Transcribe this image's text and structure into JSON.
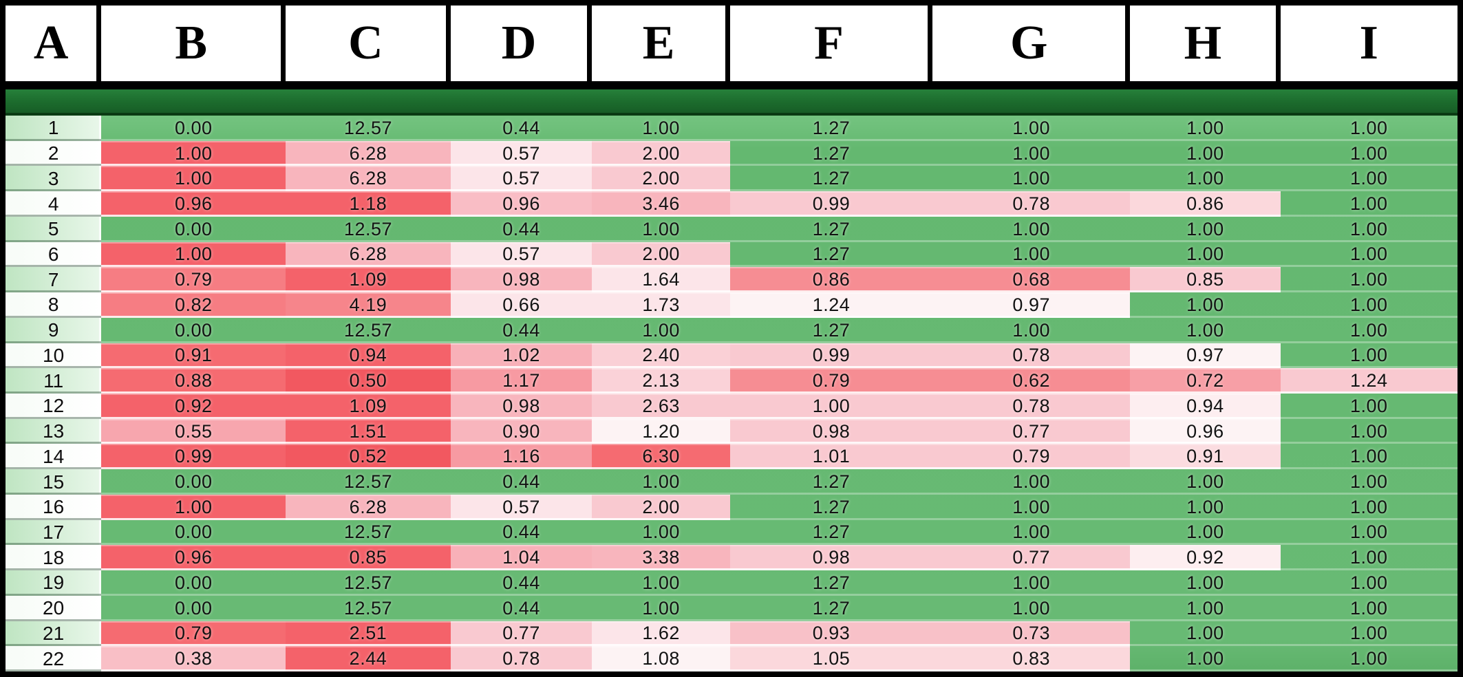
{
  "header": {
    "columns": [
      "A",
      "B",
      "C",
      "D",
      "E",
      "F",
      "G",
      "H",
      "I"
    ]
  },
  "colors": {
    "grid_background_green": "#66ba72",
    "divider_band_dark_green": "#1c6b2d",
    "header_background": "#ffffff",
    "frame_border": "#000000",
    "row_number_odd_green": "#c9e9cc",
    "row_number_even_white": "#ffffff",
    "heat_scale_red_max": "#f25860",
    "heat_scale_white_mid": "#fdf3f4"
  },
  "table": {
    "rows": [
      {
        "num": "1",
        "cells": [
          {
            "v": "0.00",
            "bg": ""
          },
          {
            "v": "12.57",
            "bg": ""
          },
          {
            "v": "0.44",
            "bg": ""
          },
          {
            "v": "1.00",
            "bg": ""
          },
          {
            "v": "1.27",
            "bg": ""
          },
          {
            "v": "1.00",
            "bg": ""
          },
          {
            "v": "1.00",
            "bg": ""
          },
          {
            "v": "1.00",
            "bg": ""
          }
        ]
      },
      {
        "num": "2",
        "cells": [
          {
            "v": "1.00",
            "bg": "#f4626a"
          },
          {
            "v": "6.28",
            "bg": "#f8b5bd"
          },
          {
            "v": "0.57",
            "bg": "#fce5e9"
          },
          {
            "v": "2.00",
            "bg": "#f9c9d0"
          },
          {
            "v": "1.27",
            "bg": ""
          },
          {
            "v": "1.00",
            "bg": ""
          },
          {
            "v": "1.00",
            "bg": ""
          },
          {
            "v": "1.00",
            "bg": ""
          }
        ]
      },
      {
        "num": "3",
        "cells": [
          {
            "v": "1.00",
            "bg": "#f4626a"
          },
          {
            "v": "6.28",
            "bg": "#f8b5bd"
          },
          {
            "v": "0.57",
            "bg": "#fce5e9"
          },
          {
            "v": "2.00",
            "bg": "#f9c9d0"
          },
          {
            "v": "1.27",
            "bg": ""
          },
          {
            "v": "1.00",
            "bg": ""
          },
          {
            "v": "1.00",
            "bg": ""
          },
          {
            "v": "1.00",
            "bg": ""
          }
        ]
      },
      {
        "num": "4",
        "cells": [
          {
            "v": "0.96",
            "bg": "#f4626a"
          },
          {
            "v": "1.18",
            "bg": "#f4626a"
          },
          {
            "v": "0.96",
            "bg": "#f9bdc5"
          },
          {
            "v": "3.46",
            "bg": "#f8b5bd"
          },
          {
            "v": "0.99",
            "bg": "#f9c9d0"
          },
          {
            "v": "0.78",
            "bg": "#f9c9d0"
          },
          {
            "v": "0.86",
            "bg": "#fbd8dc"
          },
          {
            "v": "1.00",
            "bg": ""
          }
        ]
      },
      {
        "num": "5",
        "cells": [
          {
            "v": "0.00",
            "bg": ""
          },
          {
            "v": "12.57",
            "bg": ""
          },
          {
            "v": "0.44",
            "bg": ""
          },
          {
            "v": "1.00",
            "bg": ""
          },
          {
            "v": "1.27",
            "bg": ""
          },
          {
            "v": "1.00",
            "bg": ""
          },
          {
            "v": "1.00",
            "bg": ""
          },
          {
            "v": "1.00",
            "bg": ""
          }
        ]
      },
      {
        "num": "6",
        "cells": [
          {
            "v": "1.00",
            "bg": "#f4626a"
          },
          {
            "v": "6.28",
            "bg": "#f8b5bd"
          },
          {
            "v": "0.57",
            "bg": "#fce5e9"
          },
          {
            "v": "2.00",
            "bg": "#f9c9d0"
          },
          {
            "v": "1.27",
            "bg": ""
          },
          {
            "v": "1.00",
            "bg": ""
          },
          {
            "v": "1.00",
            "bg": ""
          },
          {
            "v": "1.00",
            "bg": ""
          }
        ]
      },
      {
        "num": "7",
        "cells": [
          {
            "v": "0.79",
            "bg": "#f67d83"
          },
          {
            "v": "1.09",
            "bg": "#f4626a"
          },
          {
            "v": "0.98",
            "bg": "#f8b5bd"
          },
          {
            "v": "1.64",
            "bg": "#fce5e9"
          },
          {
            "v": "0.86",
            "bg": "#f68d93"
          },
          {
            "v": "0.68",
            "bg": "#f68d93"
          },
          {
            "v": "0.85",
            "bg": "#f9c9d0"
          },
          {
            "v": "1.00",
            "bg": ""
          }
        ]
      },
      {
        "num": "8",
        "cells": [
          {
            "v": "0.82",
            "bg": "#f67d83"
          },
          {
            "v": "4.19",
            "bg": "#f6858b"
          },
          {
            "v": "0.66",
            "bg": "#fce5e9"
          },
          {
            "v": "1.73",
            "bg": "#fce5e9"
          },
          {
            "v": "1.24",
            "bg": "#fdf3f4"
          },
          {
            "v": "0.97",
            "bg": "#fdf3f4"
          },
          {
            "v": "1.00",
            "bg": ""
          },
          {
            "v": "1.00",
            "bg": ""
          }
        ]
      },
      {
        "num": "9",
        "cells": [
          {
            "v": "0.00",
            "bg": ""
          },
          {
            "v": "12.57",
            "bg": ""
          },
          {
            "v": "0.44",
            "bg": ""
          },
          {
            "v": "1.00",
            "bg": ""
          },
          {
            "v": "1.27",
            "bg": ""
          },
          {
            "v": "1.00",
            "bg": ""
          },
          {
            "v": "1.00",
            "bg": ""
          },
          {
            "v": "1.00",
            "bg": ""
          }
        ]
      },
      {
        "num": "10",
        "cells": [
          {
            "v": "0.91",
            "bg": "#f56b71"
          },
          {
            "v": "0.94",
            "bg": "#f4626a"
          },
          {
            "v": "1.02",
            "bg": "#f8b0b8"
          },
          {
            "v": "2.40",
            "bg": "#fad0d6"
          },
          {
            "v": "0.99",
            "bg": "#f9c9d0"
          },
          {
            "v": "0.78",
            "bg": "#f9c9d0"
          },
          {
            "v": "0.97",
            "bg": "#fdf3f4"
          },
          {
            "v": "1.00",
            "bg": ""
          }
        ]
      },
      {
        "num": "11",
        "cells": [
          {
            "v": "0.88",
            "bg": "#f56b71"
          },
          {
            "v": "0.50",
            "bg": "#f25860"
          },
          {
            "v": "1.17",
            "bg": "#f79aa2"
          },
          {
            "v": "2.13",
            "bg": "#fad2d8"
          },
          {
            "v": "0.79",
            "bg": "#f68d93"
          },
          {
            "v": "0.62",
            "bg": "#f68d93"
          },
          {
            "v": "0.72",
            "bg": "#f79fa6"
          },
          {
            "v": "1.24",
            "bg": "#f9c9d0"
          }
        ]
      },
      {
        "num": "12",
        "cells": [
          {
            "v": "0.92",
            "bg": "#f4626a"
          },
          {
            "v": "1.09",
            "bg": "#f4626a"
          },
          {
            "v": "0.98",
            "bg": "#f8b5bd"
          },
          {
            "v": "2.63",
            "bg": "#f9c9d0"
          },
          {
            "v": "1.00",
            "bg": "#f9c9d0"
          },
          {
            "v": "0.78",
            "bg": "#f9c9d0"
          },
          {
            "v": "0.94",
            "bg": "#fdeef0"
          },
          {
            "v": "1.00",
            "bg": ""
          }
        ]
      },
      {
        "num": "13",
        "cells": [
          {
            "v": "0.55",
            "bg": "#f7a6ae"
          },
          {
            "v": "1.51",
            "bg": "#f4626a"
          },
          {
            "v": "0.90",
            "bg": "#f8b5bd"
          },
          {
            "v": "1.20",
            "bg": "#fdf3f4"
          },
          {
            "v": "0.98",
            "bg": "#f9c9d0"
          },
          {
            "v": "0.77",
            "bg": "#f9c9d0"
          },
          {
            "v": "0.96",
            "bg": "#fdf3f4"
          },
          {
            "v": "1.00",
            "bg": ""
          }
        ]
      },
      {
        "num": "14",
        "cells": [
          {
            "v": "0.99",
            "bg": "#f4626a"
          },
          {
            "v": "0.52",
            "bg": "#f25860"
          },
          {
            "v": "1.16",
            "bg": "#f79aa2"
          },
          {
            "v": "6.30",
            "bg": "#f56b71"
          },
          {
            "v": "1.01",
            "bg": "#f9c9d0"
          },
          {
            "v": "0.79",
            "bg": "#f9c9d0"
          },
          {
            "v": "0.91",
            "bg": "#fbdce0"
          },
          {
            "v": "1.00",
            "bg": ""
          }
        ]
      },
      {
        "num": "15",
        "cells": [
          {
            "v": "0.00",
            "bg": ""
          },
          {
            "v": "12.57",
            "bg": ""
          },
          {
            "v": "0.44",
            "bg": ""
          },
          {
            "v": "1.00",
            "bg": ""
          },
          {
            "v": "1.27",
            "bg": ""
          },
          {
            "v": "1.00",
            "bg": ""
          },
          {
            "v": "1.00",
            "bg": ""
          },
          {
            "v": "1.00",
            "bg": ""
          }
        ]
      },
      {
        "num": "16",
        "cells": [
          {
            "v": "1.00",
            "bg": "#f4626a"
          },
          {
            "v": "6.28",
            "bg": "#f8b5bd"
          },
          {
            "v": "0.57",
            "bg": "#fce5e9"
          },
          {
            "v": "2.00",
            "bg": "#f9c9d0"
          },
          {
            "v": "1.27",
            "bg": ""
          },
          {
            "v": "1.00",
            "bg": ""
          },
          {
            "v": "1.00",
            "bg": ""
          },
          {
            "v": "1.00",
            "bg": ""
          }
        ]
      },
      {
        "num": "17",
        "cells": [
          {
            "v": "0.00",
            "bg": ""
          },
          {
            "v": "12.57",
            "bg": ""
          },
          {
            "v": "0.44",
            "bg": ""
          },
          {
            "v": "1.00",
            "bg": ""
          },
          {
            "v": "1.27",
            "bg": ""
          },
          {
            "v": "1.00",
            "bg": ""
          },
          {
            "v": "1.00",
            "bg": ""
          },
          {
            "v": "1.00",
            "bg": ""
          }
        ]
      },
      {
        "num": "18",
        "cells": [
          {
            "v": "0.96",
            "bg": "#f4626a"
          },
          {
            "v": "0.85",
            "bg": "#f4626a"
          },
          {
            "v": "1.04",
            "bg": "#f8b0b8"
          },
          {
            "v": "3.38",
            "bg": "#f8b5bd"
          },
          {
            "v": "0.98",
            "bg": "#f9c9d0"
          },
          {
            "v": "0.77",
            "bg": "#f9c9d0"
          },
          {
            "v": "0.92",
            "bg": "#fdeef0"
          },
          {
            "v": "1.00",
            "bg": ""
          }
        ]
      },
      {
        "num": "19",
        "cells": [
          {
            "v": "0.00",
            "bg": ""
          },
          {
            "v": "12.57",
            "bg": ""
          },
          {
            "v": "0.44",
            "bg": ""
          },
          {
            "v": "1.00",
            "bg": ""
          },
          {
            "v": "1.27",
            "bg": ""
          },
          {
            "v": "1.00",
            "bg": ""
          },
          {
            "v": "1.00",
            "bg": ""
          },
          {
            "v": "1.00",
            "bg": ""
          }
        ]
      },
      {
        "num": "20",
        "cells": [
          {
            "v": "0.00",
            "bg": ""
          },
          {
            "v": "12.57",
            "bg": ""
          },
          {
            "v": "0.44",
            "bg": ""
          },
          {
            "v": "1.00",
            "bg": ""
          },
          {
            "v": "1.27",
            "bg": ""
          },
          {
            "v": "1.00",
            "bg": ""
          },
          {
            "v": "1.00",
            "bg": ""
          },
          {
            "v": "1.00",
            "bg": ""
          }
        ]
      },
      {
        "num": "21",
        "cells": [
          {
            "v": "0.79",
            "bg": "#f56b71"
          },
          {
            "v": "2.51",
            "bg": "#f4626a"
          },
          {
            "v": "0.77",
            "bg": "#f9c9d0"
          },
          {
            "v": "1.62",
            "bg": "#fce5e9"
          },
          {
            "v": "0.93",
            "bg": "#f8c1c8"
          },
          {
            "v": "0.73",
            "bg": "#f8c1c8"
          },
          {
            "v": "1.00",
            "bg": ""
          },
          {
            "v": "1.00",
            "bg": ""
          }
        ]
      },
      {
        "num": "22",
        "cells": [
          {
            "v": "0.38",
            "bg": "#f9bfc6"
          },
          {
            "v": "2.44",
            "bg": "#f4626a"
          },
          {
            "v": "0.78",
            "bg": "#f9c9d0"
          },
          {
            "v": "1.08",
            "bg": "#fdf3f4"
          },
          {
            "v": "1.05",
            "bg": "#fbd8dc"
          },
          {
            "v": "0.83",
            "bg": "#fbd8dc"
          },
          {
            "v": "1.00",
            "bg": ""
          },
          {
            "v": "1.00",
            "bg": ""
          }
        ]
      }
    ]
  }
}
